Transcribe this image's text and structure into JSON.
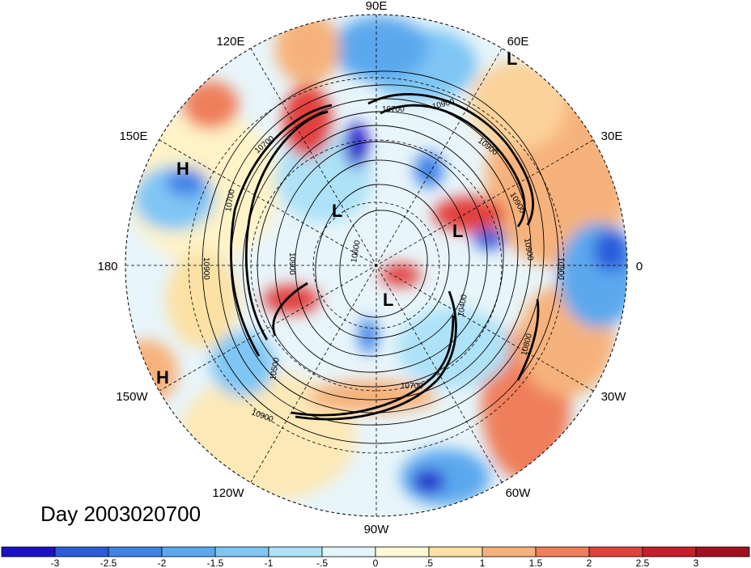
{
  "title": "Day 2003020700",
  "lon_labels": [
    "90E",
    "60E",
    "30E",
    "0",
    "30W",
    "60W",
    "90W",
    "120W",
    "150W",
    "180",
    "150E",
    "120E"
  ],
  "contour_labels": [
    "10900",
    "10900",
    "10700",
    "10900",
    "10900",
    "10700",
    "10900",
    "10900",
    "10400",
    "10800",
    "10500",
    "10900",
    "10700",
    "10600",
    "10900",
    "10700"
  ],
  "pressure_marks": [
    "L",
    "L",
    "L",
    "L",
    "H",
    "H"
  ],
  "colorbar": {
    "labels": [
      "-3",
      "-2.5",
      "-2",
      "-1.5",
      "-1",
      "-.5",
      "0",
      ".5",
      "1",
      "1.5",
      "2",
      "2.5",
      "3"
    ],
    "colors": [
      "#1c10c8",
      "#2c5cdc",
      "#3f82e6",
      "#5ba8ee",
      "#7fc6f4",
      "#aee2f8",
      "#e3f6fb",
      "#fff9d6",
      "#fbe1a4",
      "#f6b27c",
      "#ef7f5b",
      "#e2413e",
      "#c81e2a",
      "#a50f1f"
    ]
  },
  "colors": {
    "line": "#000000",
    "background": "#ffffff"
  },
  "icons": {
    "projection": "north-polar-stereographic"
  }
}
